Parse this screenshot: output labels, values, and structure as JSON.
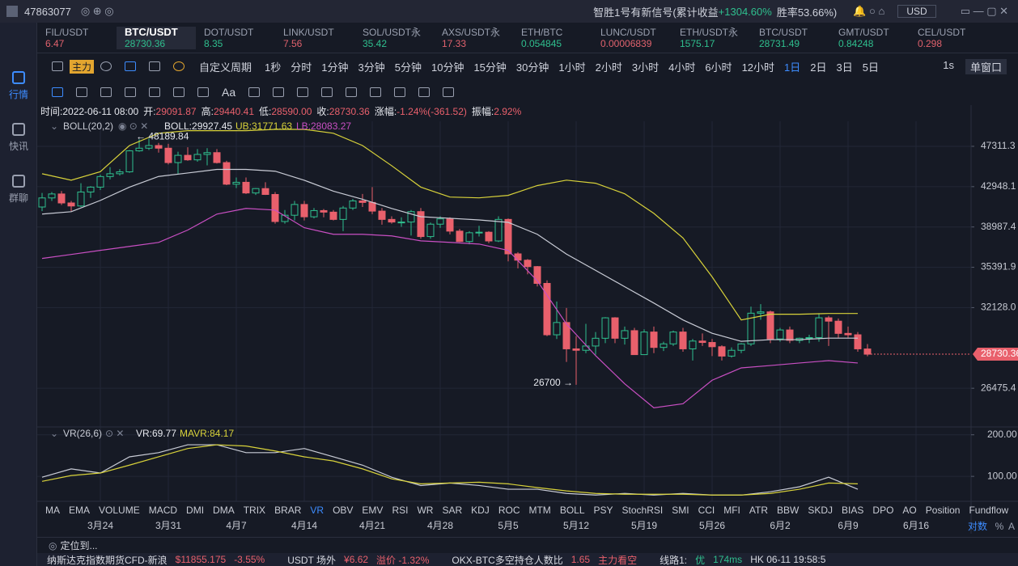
{
  "top_bar": {
    "user_id": "47863077",
    "signal": "智胜1号有新信号(累计收益",
    "signal_gain": "+1304.60%",
    "win_rate": "胜率53.66%)",
    "currency": "USD"
  },
  "sidebar": [
    "行情",
    "快讯",
    "群聊"
  ],
  "tickers": [
    {
      "symbol": "FIL/USDT",
      "price": "6.47",
      "color": "#e0626d"
    },
    {
      "symbol": "BTC/USDT",
      "price": "28730.36",
      "color": "#2fbf8e"
    },
    {
      "symbol": "DOT/USDT",
      "price": "8.35",
      "color": "#2fbf8e"
    },
    {
      "symbol": "LINK/USDT",
      "price": "7.56",
      "color": "#e0626d"
    },
    {
      "symbol": "SOL/USDT永",
      "price": "35.42",
      "color": "#2fbf8e"
    },
    {
      "symbol": "AXS/USDT永",
      "price": "17.33",
      "color": "#e0626d"
    },
    {
      "symbol": "ETH/BTC",
      "price": "0.054845",
      "color": "#2fbf8e"
    },
    {
      "symbol": "LUNC/USDT",
      "price": "0.00006839",
      "color": "#e0626d"
    },
    {
      "symbol": "ETH/USDT永",
      "price": "1575.17",
      "color": "#2fbf8e"
    },
    {
      "symbol": "BTC/USDT",
      "price": "28731.49",
      "color": "#2fbf8e"
    },
    {
      "symbol": "GMT/USDT",
      "price": "0.84248",
      "color": "#2fbf8e"
    },
    {
      "symbol": "CEL/USDT",
      "price": "0.298",
      "color": "#e0626d"
    }
  ],
  "toolbar": {
    "main": "主力",
    "custom_period": "自定义周期",
    "periods": [
      "1秒",
      "分时",
      "1分钟",
      "3分钟",
      "5分钟",
      "10分钟",
      "15分钟",
      "30分钟",
      "1小时",
      "2小时",
      "3小时",
      "4小时",
      "6小时",
      "12小时",
      "1日",
      "2日",
      "3日",
      "5日"
    ],
    "right": [
      "1s",
      "单窗口"
    ]
  },
  "drawing_toolbar": {
    "text_tool": "Aa"
  },
  "info": [
    {
      "label": "时间:",
      "value": "2022-06-11 08:00"
    },
    {
      "label": "开:",
      "value": "29091.87"
    },
    {
      "label": "高:",
      "value": "29440.41"
    },
    {
      "label": "低:",
      "value": "28590.00"
    },
    {
      "label": "收:",
      "value": "28730.36"
    },
    {
      "label": "涨幅:",
      "value": "-1.24%(-361.52)"
    },
    {
      "label": "振幅:",
      "value": "2.92%"
    }
  ],
  "chart_data": [
    {
      "type": "candlestick",
      "log_scale": true,
      "grid": true,
      "up_color": "#2fbf8e",
      "down_color": "#e9606c",
      "ylim": [
        24270,
        50240
      ],
      "yticks": [
        47311.3,
        42948.1,
        38987.4,
        35391.9,
        {
          "value": 32128,
          "label": "32128.0"
        },
        26475.4
      ],
      "x_labels": [
        "3月24",
        "3月31",
        "4月7",
        "4月14",
        "4月21",
        "4月28",
        "5月5",
        "5月12",
        "5月19",
        "5月26",
        "6月2",
        "6月9",
        "6月16"
      ],
      "legend": {
        "name": "BOLL(20,2)",
        "boll": "BOLL:29927.45",
        "ub": "UB:31771.63",
        "lb": "LB:28083.27"
      },
      "annotations": [
        "← 48189.84",
        "26700 →"
      ],
      "candles": [
        [
          40900,
          42300,
          40500,
          41800
        ],
        [
          41800,
          42400,
          41500,
          42200
        ],
        [
          42200,
          42500,
          41100,
          41300
        ],
        [
          41300,
          41500,
          40500,
          41000
        ],
        [
          41000,
          43300,
          40900,
          42400
        ],
        [
          42400,
          43000,
          41800,
          42900
        ],
        [
          42900,
          44200,
          42600,
          44000
        ],
        [
          44000,
          45000,
          43700,
          44300
        ],
        [
          44300,
          44800,
          44100,
          44500
        ],
        [
          44500,
          46900,
          44400,
          46800
        ],
        [
          46800,
          48100,
          46700,
          47100
        ],
        [
          47100,
          48189.84,
          46900,
          47400
        ],
        [
          47400,
          47700,
          46600,
          47100
        ],
        [
          47100,
          47600,
          45300,
          45500
        ],
        [
          45500,
          46700,
          44300,
          46300
        ],
        [
          46300,
          47200,
          45700,
          45800
        ],
        [
          45800,
          47000,
          45600,
          46400
        ],
        [
          46400,
          47100,
          45200,
          46600
        ],
        [
          46600,
          47000,
          45400,
          45500
        ],
        [
          45500,
          45700,
          43100,
          43200
        ],
        [
          43200,
          43900,
          42800,
          43400
        ],
        [
          43400,
          43900,
          42200,
          42300
        ],
        [
          42300,
          42800,
          42100,
          42750
        ],
        [
          42750,
          43400,
          42100,
          42150
        ],
        [
          42150,
          42400,
          39300,
          39500
        ],
        [
          39500,
          40600,
          39300,
          40100
        ],
        [
          40100,
          41500,
          39600,
          41150
        ],
        [
          41150,
          41500,
          39600,
          39950
        ],
        [
          39950,
          40800,
          39800,
          40550
        ],
        [
          40550,
          40700,
          39900,
          40400
        ],
        [
          40400,
          40600,
          39600,
          39700
        ],
        [
          39700,
          41000,
          38600,
          40800
        ],
        [
          40800,
          41700,
          40600,
          41500
        ],
        [
          41500,
          42200,
          40900,
          41350
        ],
        [
          41350,
          42900,
          40200,
          40500
        ],
        [
          40500,
          40800,
          39200,
          39700
        ],
        [
          39700,
          40000,
          39300,
          39450
        ],
        [
          39450,
          39900,
          39000,
          39450
        ],
        [
          39450,
          40600,
          38200,
          40450
        ],
        [
          40450,
          40800,
          37900,
          38100
        ],
        [
          38100,
          39400,
          37900,
          39250
        ],
        [
          39250,
          40000,
          38900,
          39750
        ],
        [
          39750,
          39900,
          38300,
          38600
        ],
        [
          38600,
          38800,
          37600,
          37650
        ],
        [
          37650,
          38600,
          37400,
          38450
        ],
        [
          38450,
          39100,
          38100,
          38500
        ],
        [
          38500,
          38600,
          37500,
          37700
        ],
        [
          37700,
          40000,
          37600,
          39700
        ],
        [
          39700,
          39800,
          35900,
          36550
        ],
        [
          36550,
          36700,
          35300,
          36000
        ],
        [
          36000,
          36100,
          34800,
          35450
        ],
        [
          35450,
          35500,
          33800,
          34050
        ],
        [
          34050,
          34300,
          30000,
          30100
        ],
        [
          30100,
          32600,
          29800,
          31000
        ],
        [
          31000,
          32100,
          28200,
          29100
        ],
        [
          29100,
          30000,
          26700,
          29000
        ],
        [
          29000,
          30900,
          28800,
          29300
        ],
        [
          29300,
          30300,
          28700,
          29850
        ],
        [
          29850,
          31400,
          29500,
          31350
        ],
        [
          31350,
          31400,
          29500,
          29850
        ],
        [
          29850,
          30700,
          29400,
          30400
        ],
        [
          30400,
          30600,
          28700,
          28700
        ],
        [
          28700,
          30500,
          28700,
          30300
        ],
        [
          30300,
          30700,
          28800,
          29200
        ],
        [
          29200,
          29600,
          28950,
          29450
        ],
        [
          29450,
          30400,
          29300,
          30300
        ],
        [
          30300,
          30600,
          28900,
          29100
        ],
        [
          29100,
          29800,
          28300,
          29650
        ],
        [
          29650,
          30200,
          29300,
          29550
        ],
        [
          29550,
          29800,
          28600,
          29250
        ],
        [
          29250,
          29350,
          28300,
          28600
        ],
        [
          28600,
          29200,
          28500,
          29000
        ],
        [
          29000,
          29500,
          28800,
          29450
        ],
        [
          29450,
          32200,
          29300,
          31700
        ],
        [
          31700,
          32400,
          31200,
          31800
        ],
        [
          31800,
          31900,
          29500,
          29800
        ],
        [
          29800,
          30600,
          29600,
          30450
        ],
        [
          30450,
          30700,
          29500,
          29700
        ],
        [
          29700,
          29900,
          29500,
          29850
        ],
        [
          29850,
          30100,
          29500,
          29900
        ],
        [
          29900,
          31700,
          29600,
          31350
        ],
        [
          31350,
          31500,
          29300,
          31100
        ],
        [
          31100,
          31300,
          29900,
          30200
        ],
        [
          30200,
          30700,
          29900,
          30100
        ],
        [
          30100,
          30300,
          28900,
          29100
        ],
        [
          29091.87,
          29440.41,
          28590,
          28730.36
        ]
      ],
      "series": [
        {
          "name": "UB",
          "color": "#d8d23a",
          "values": [
            44300,
            43620,
            44520,
            47400,
            48820,
            49120,
            49120,
            49120,
            49275,
            49275,
            48820,
            47400,
            45160,
            42900,
            41890,
            41810,
            42060,
            43060,
            43620,
            43300,
            42220,
            40280,
            37970,
            34590,
            31190,
            31620,
            31620,
            31680,
            31680
          ]
        },
        {
          "name": "BOLL",
          "color": "#c9ccd6",
          "values": [
            40210,
            40440,
            41550,
            42900,
            44010,
            44380,
            44760,
            44760,
            44570,
            43610,
            42480,
            41670,
            40760,
            39960,
            39810,
            39650,
            39420,
            38310,
            36530,
            35130,
            33780,
            32480,
            31190,
            30210,
            29630,
            29750,
            29750,
            29860,
            29860
          ]
        },
        {
          "name": "LB",
          "color": "#c94fc3",
          "values": [
            36150,
            36500,
            36860,
            37210,
            37570,
            38700,
            40210,
            40760,
            40600,
            38920,
            38310,
            38310,
            38160,
            37710,
            37570,
            37420,
            36860,
            34260,
            30890,
            28630,
            26760,
            25260,
            25510,
            26990,
            27800,
            27960,
            28130,
            28290,
            28130
          ]
        }
      ]
    },
    {
      "type": "line",
      "grid": true,
      "ylim": [
        40,
        215
      ],
      "yticks": [
        {
          "value": 200,
          "label": "200.00"
        },
        {
          "value": 100,
          "label": "100.00"
        }
      ],
      "legend": {
        "name": "VR(26,6)",
        "vr": "VR:69.77",
        "mavr": "MAVR:84.17"
      },
      "series": [
        {
          "name": "VR",
          "color": "#c9ccd6",
          "values": [
            98,
            118,
            108,
            147,
            157,
            176,
            176,
            157,
            157,
            167,
            147,
            127,
            98,
            78,
            84,
            78,
            69,
            69,
            59,
            55,
            59,
            55,
            59,
            55,
            55,
            63,
            75,
            98,
            69
          ]
        },
        {
          "name": "MAVR",
          "color": "#d8d23a",
          "values": [
            88,
            102,
            108,
            127,
            147,
            167,
            176,
            173,
            161,
            147,
            137,
            118,
            94,
            82,
            84,
            86,
            82,
            73,
            65,
            59,
            57,
            57,
            57,
            55,
            55,
            59,
            69,
            84,
            82
          ]
        }
      ]
    }
  ],
  "indicator_tabs": [
    "MA",
    "EMA",
    "VOLUME",
    "MACD",
    "DMI",
    "DMA",
    "TRIX",
    "BRAR",
    "VR",
    "OBV",
    "EMV",
    "RSI",
    "WR",
    "SAR",
    "KDJ",
    "ROC",
    "MTM",
    "BOLL",
    "PSY",
    "StochRSI",
    "SMI",
    "CCI",
    "MFI",
    "ATR",
    "BBW",
    "SKDJ",
    "BIAS",
    "DPO",
    "AO",
    "Position",
    "Fundflow"
  ],
  "axis_options": [
    "对数",
    "%",
    "A"
  ],
  "locate": "定位到...",
  "status_bar": [
    {
      "text": "纳斯达克指数期货CFD-新浪",
      "color": "#d6d8e0"
    },
    {
      "text": "$11855.175",
      "color": "#e9606c"
    },
    {
      "text": "-3.55%",
      "color": "#e9606c"
    },
    {
      "text": "USDT 场外",
      "color": "#d6d8e0"
    },
    {
      "text": "¥6.62",
      "color": "#e9606c"
    },
    {
      "text": "溢价 -1.32%",
      "color": "#e9606c"
    },
    {
      "text": "OKX-BTC多空持仓人数比",
      "color": "#d6d8e0"
    },
    {
      "text": "1.65",
      "color": "#e9606c"
    },
    {
      "text": "主力看空",
      "color": "#e9606c"
    },
    {
      "text": "线路1:",
      "color": "#d6d8e0"
    },
    {
      "text": "优",
      "color": "#2fbf8e"
    },
    {
      "text": "174ms",
      "color": "#2fbf8e"
    },
    {
      "text": "HK 06-11 19:58:5",
      "color": "#d6d8e0"
    }
  ]
}
